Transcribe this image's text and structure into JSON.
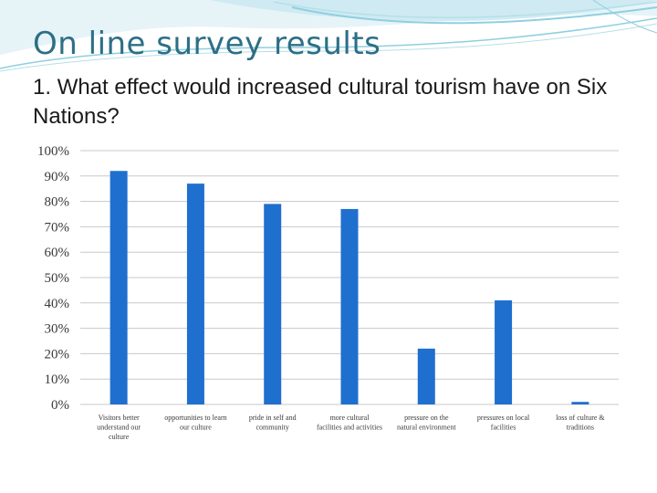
{
  "slide": {
    "title": "On line survey results",
    "question_number": "1.",
    "question": "What effect would increased cultural tourism have on Six Nations?"
  },
  "colors": {
    "title": "#2c6f86",
    "bar": "#1f6fcf",
    "grid": "#c8c8c8",
    "banner_light": "#cfeaf2",
    "banner_mid": "#8fcfe0"
  },
  "chart_data": {
    "type": "bar",
    "title": "",
    "xlabel": "",
    "ylabel": "",
    "ylim": [
      0,
      100
    ],
    "y_ticks": [
      "0%",
      "10%",
      "20%",
      "30%",
      "40%",
      "50%",
      "60%",
      "70%",
      "80%",
      "90%",
      "100%"
    ],
    "grid": true,
    "categories": [
      [
        "Visitors better",
        "understand our",
        "culture"
      ],
      [
        "opportunities to learn",
        "our culture"
      ],
      [
        "pride in self and",
        "community"
      ],
      [
        "more cultural",
        "facilities and activities"
      ],
      [
        "pressure on the",
        "natural environment"
      ],
      [
        "pressures on local",
        "facilities"
      ],
      [
        "loss of culture &",
        "traditions"
      ]
    ],
    "values": [
      92,
      87,
      79,
      77,
      22,
      41,
      1
    ]
  }
}
